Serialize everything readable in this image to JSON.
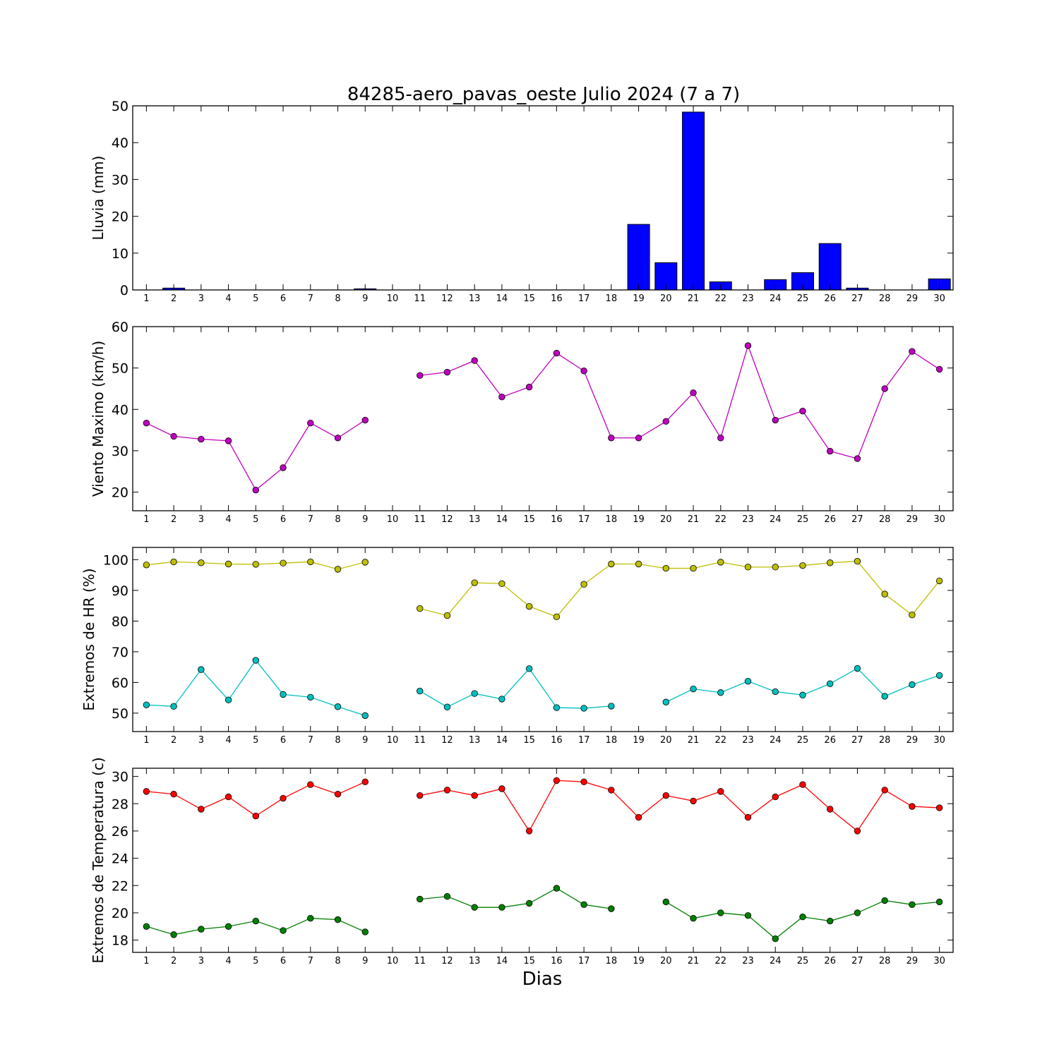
{
  "title": "84285-aero_pavas_oeste Julio 2024  (7 a 7)",
  "xlabel": "Dias",
  "colors": {
    "rain": "#0000ff",
    "wind": "#bf00bf",
    "hr_max": "#bfbf00",
    "hr_min": "#00bfbf",
    "temp_max": "#ff0000",
    "temp_min": "#008000"
  },
  "chart_data": [
    {
      "type": "bar",
      "ylabel": "Lluvia (mm)",
      "ylim": [
        0,
        50
      ],
      "yticks": [
        0,
        10,
        20,
        30,
        40,
        50
      ],
      "categories": [
        "1",
        "2",
        "3",
        "4",
        "5",
        "6",
        "7",
        "8",
        "9",
        "10",
        "11",
        "12",
        "13",
        "14",
        "15",
        "16",
        "17",
        "18",
        "19",
        "20",
        "21",
        "22",
        "23",
        "24",
        "25",
        "26",
        "27",
        "28",
        "29",
        "30"
      ],
      "values": [
        0.0,
        0.5,
        0.0,
        0.0,
        0.0,
        0.0,
        0.0,
        0.0,
        0.3,
        0.0,
        0.0,
        0.0,
        0.0,
        0.0,
        0.0,
        0.0,
        0.0,
        0.0,
        17.8,
        7.4,
        48.3,
        2.2,
        0.0,
        2.8,
        4.7,
        12.6,
        0.5,
        0.0,
        0.0,
        3.0
      ],
      "grid": false
    },
    {
      "type": "line",
      "ylabel": "Viento Maximo (km/h)",
      "ylim": [
        15.5,
        60
      ],
      "yticks": [
        20,
        30,
        40,
        50,
        60
      ],
      "x": [
        1,
        2,
        3,
        4,
        5,
        6,
        7,
        8,
        9,
        10,
        11,
        12,
        13,
        14,
        15,
        16,
        17,
        18,
        19,
        20,
        21,
        22,
        23,
        24,
        25,
        26,
        27,
        28,
        29,
        30
      ],
      "series": [
        {
          "values": [
            36.7,
            33.5,
            32.8,
            32.4,
            20.5,
            25.9,
            36.7,
            33.1,
            37.4,
            null,
            48.2,
            49.0,
            51.8,
            43.0,
            45.4,
            53.6,
            49.3,
            33.1,
            33.1,
            37.1,
            44.0,
            33.1,
            55.4,
            37.4,
            39.6,
            29.9,
            28.1,
            45.0,
            54.0,
            49.7
          ]
        }
      ],
      "grid": false
    },
    {
      "type": "line",
      "ylabel": "Extremos de HR (%)",
      "ylim": [
        44,
        104
      ],
      "yticks": [
        50,
        60,
        70,
        80,
        90,
        100
      ],
      "x": [
        1,
        2,
        3,
        4,
        5,
        6,
        7,
        8,
        9,
        10,
        11,
        12,
        13,
        14,
        15,
        16,
        17,
        18,
        19,
        20,
        21,
        22,
        23,
        24,
        25,
        26,
        27,
        28,
        29,
        30
      ],
      "series": [
        {
          "values": [
            98.3,
            99.3,
            99.0,
            98.6,
            98.5,
            98.9,
            99.3,
            96.9,
            99.2,
            null,
            84.1,
            81.8,
            92.5,
            92.2,
            84.8,
            81.4,
            92.0,
            98.6,
            98.6,
            97.2,
            97.2,
            99.2,
            97.6,
            97.6,
            98.1,
            99.0,
            99.5,
            88.8,
            82.0,
            93.1
          ]
        },
        {
          "values": [
            52.7,
            52.2,
            64.2,
            54.3,
            67.2,
            56.1,
            55.2,
            52.1,
            49.2,
            null,
            57.2,
            52.0,
            56.4,
            54.6,
            64.5,
            51.8,
            51.6,
            52.3,
            null,
            53.6,
            57.9,
            56.7,
            60.4,
            57.0,
            55.9,
            59.6,
            64.6,
            55.5,
            59.3,
            62.3
          ]
        }
      ],
      "grid": false
    },
    {
      "type": "line",
      "ylabel": "Extremos de Temperatura (c)",
      "ylim": [
        17.1,
        30.6
      ],
      "yticks": [
        18,
        20,
        22,
        24,
        26,
        28,
        30
      ],
      "x": [
        1,
        2,
        3,
        4,
        5,
        6,
        7,
        8,
        9,
        10,
        11,
        12,
        13,
        14,
        15,
        16,
        17,
        18,
        19,
        20,
        21,
        22,
        23,
        24,
        25,
        26,
        27,
        28,
        29,
        30
      ],
      "series": [
        {
          "values": [
            28.9,
            28.7,
            27.6,
            28.5,
            27.1,
            28.4,
            29.4,
            28.7,
            29.6,
            null,
            28.6,
            29.0,
            28.6,
            29.1,
            26.0,
            29.7,
            29.6,
            29.0,
            27.0,
            28.6,
            28.2,
            28.9,
            27.0,
            28.5,
            29.4,
            27.6,
            26.0,
            29.0,
            27.8,
            27.7
          ]
        },
        {
          "values": [
            19.0,
            18.4,
            18.8,
            19.0,
            19.4,
            18.7,
            19.6,
            19.5,
            18.6,
            null,
            21.0,
            21.2,
            20.4,
            20.4,
            20.7,
            21.8,
            20.6,
            20.3,
            null,
            20.8,
            19.6,
            20.0,
            19.8,
            18.1,
            19.7,
            19.4,
            20.0,
            20.9,
            20.6,
            20.8
          ]
        }
      ],
      "grid": false
    }
  ]
}
